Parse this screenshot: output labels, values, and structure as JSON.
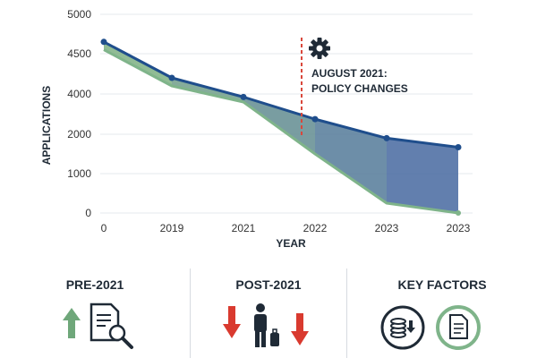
{
  "chart_data": {
    "type": "area",
    "xlabel": "YEAR",
    "ylabel": "APPLICATIONS",
    "x_tick_labels": [
      "0",
      "2019",
      "2021",
      "2022",
      "2023",
      "2023"
    ],
    "y_tick_labels": [
      "5000",
      "4500",
      "4000",
      "2000",
      "1000",
      "0"
    ],
    "series": [
      {
        "values": [
          4650,
          4200,
          3850,
          2750,
          1900,
          1670
        ]
      },
      {
        "values": [
          4550,
          4100,
          3600,
          1500,
          250,
          0
        ]
      }
    ],
    "annotation": {
      "line1": "AUGUST 2021:",
      "line2": "POLICY CHANGES",
      "icon": "gear-icon"
    },
    "colors": {
      "top_line": "#1f4e8c",
      "bottom_line": "#7fb48a",
      "fill": "#6f9f94",
      "marker_line": "#d9473b"
    }
  },
  "panels": [
    {
      "title": "PRE-2021",
      "icons": [
        "up-arrow-icon",
        "document-search-icon"
      ]
    },
    {
      "title": "POST-2021",
      "icons": [
        "down-arrow-icon",
        "traveler-icon",
        "down-arrow-icon"
      ]
    },
    {
      "title": "KEY FACTORS",
      "icons": [
        "coins-icon",
        "document-icon"
      ]
    }
  ]
}
